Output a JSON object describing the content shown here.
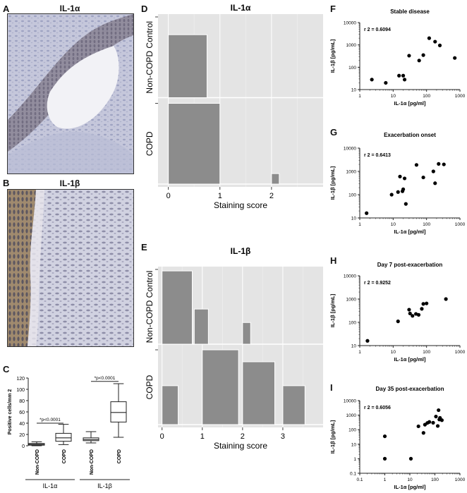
{
  "panels": {
    "A": {
      "letter": "A",
      "title": "IL-1α"
    },
    "B": {
      "letter": "B",
      "title": "IL-1β"
    },
    "C": {
      "letter": "C"
    },
    "D": {
      "letter": "D"
    },
    "E": {
      "letter": "E"
    },
    "F": {
      "letter": "F"
    },
    "G": {
      "letter": "G"
    },
    "H": {
      "letter": "H"
    },
    "I": {
      "letter": "I"
    }
  },
  "colors": {
    "hist_bg": "#e4e4e4",
    "hist_bar": "#8c8c8c",
    "box": "#222222",
    "dot": "#000000"
  },
  "chart_data": [
    {
      "id": "C",
      "type": "box",
      "ylabel": "Positive cells/mm 2",
      "ylim": [
        0,
        120
      ],
      "yticks": [
        0,
        20,
        40,
        60,
        80,
        100,
        120
      ],
      "groups": [
        "IL-1α",
        "IL-1β"
      ],
      "categories": [
        "Non-COPD",
        "COPD",
        "Non-COPD",
        "COPD"
      ],
      "boxes": [
        {
          "category": "Non-COPD",
          "group": "IL-1α",
          "min": 0,
          "q1": 1,
          "median": 2.5,
          "q3": 4,
          "max": 7
        },
        {
          "category": "COPD",
          "group": "IL-1α",
          "min": 2,
          "q1": 8,
          "median": 14,
          "q3": 22,
          "max": 38
        },
        {
          "category": "Non-COPD",
          "group": "IL-1β",
          "min": 5,
          "q1": 9,
          "median": 11,
          "q3": 14,
          "max": 25
        },
        {
          "category": "COPD",
          "group": "IL-1β",
          "min": 15,
          "q1": 42,
          "median": 59,
          "q3": 78,
          "max": 110
        }
      ],
      "annotations": [
        "*p<0.0001",
        "*p<0.0001"
      ]
    },
    {
      "id": "D",
      "type": "bar",
      "title": "IL-1α",
      "xlabel": "Staining score",
      "xlim": [
        -0.2,
        3
      ],
      "xticks": [
        0,
        1,
        2
      ],
      "rows": [
        {
          "name": "Non-COPD Control",
          "bars": [
            {
              "x0": 0,
              "x1": 0.75,
              "height": 0.78
            }
          ]
        },
        {
          "name": "COPD",
          "bars": [
            {
              "x0": 0,
              "x1": 1.0,
              "height": 1.0
            },
            {
              "x0": 2.0,
              "x1": 2.15,
              "height": 0.13
            }
          ]
        }
      ]
    },
    {
      "id": "E",
      "type": "bar",
      "title": "IL-1β",
      "xlabel": "Staining score",
      "xlim": [
        -0.1,
        4
      ],
      "xticks": [
        0,
        1,
        2,
        3
      ],
      "rows": [
        {
          "name": "Non-COPD Control",
          "bars": [
            {
              "x0": 0,
              "x1": 0.75,
              "height": 0.98
            },
            {
              "x0": 0.8,
              "x1": 1.15,
              "height": 0.47
            },
            {
              "x0": 2.0,
              "x1": 2.2,
              "height": 0.29
            }
          ]
        },
        {
          "name": "COPD",
          "bars": [
            {
              "x0": 0,
              "x1": 0.4,
              "height": 0.52
            },
            {
              "x0": 1.0,
              "x1": 1.9,
              "height": 1.0
            },
            {
              "x0": 2.0,
              "x1": 2.8,
              "height": 0.84
            },
            {
              "x0": 3.0,
              "x1": 3.55,
              "height": 0.52
            }
          ]
        }
      ]
    },
    {
      "id": "F",
      "type": "scatter",
      "title": "Stable disease",
      "r2": "r 2 = 0.6094",
      "xlabel": "IL-1α [pg/ml]",
      "ylabel": "IL-1β [pg/mL]",
      "xscale": "log",
      "yscale": "log",
      "xlim": [
        1,
        1000
      ],
      "ylim": [
        10,
        10000
      ],
      "xticks": [
        1,
        10,
        100,
        1000
      ],
      "yticks": [
        10,
        100,
        1000,
        10000
      ],
      "points": [
        [
          2.3,
          28
        ],
        [
          6,
          20
        ],
        [
          15,
          42
        ],
        [
          20,
          42
        ],
        [
          22,
          28
        ],
        [
          30,
          330
        ],
        [
          60,
          200
        ],
        [
          80,
          350
        ],
        [
          120,
          2000
        ],
        [
          180,
          1400
        ],
        [
          250,
          950
        ],
        [
          700,
          260
        ]
      ]
    },
    {
      "id": "G",
      "type": "scatter",
      "title": "Exacerbation onset",
      "r2": "r 2 = 0.6413",
      "xlabel": "IL-1α [pg/ml]",
      "ylabel": "IL-1β [pg/mL]",
      "xscale": "log",
      "yscale": "log",
      "xlim": [
        1,
        1000
      ],
      "ylim": [
        10,
        10000
      ],
      "xticks": [
        1,
        10,
        100,
        1000
      ],
      "yticks": [
        10,
        100,
        1000,
        10000
      ],
      "points": [
        [
          1.6,
          16
        ],
        [
          9,
          100
        ],
        [
          14,
          130
        ],
        [
          16,
          600
        ],
        [
          19,
          140
        ],
        [
          20,
          170
        ],
        [
          22,
          500
        ],
        [
          24,
          40
        ],
        [
          50,
          1900
        ],
        [
          80,
          550
        ],
        [
          160,
          1000
        ],
        [
          180,
          310
        ],
        [
          230,
          2100
        ],
        [
          330,
          2000
        ]
      ]
    },
    {
      "id": "H",
      "type": "scatter",
      "title": "Day 7 post-exacerbation",
      "r2": "r 2 = 0.9252",
      "xlabel": "IL-1α [pg/ml]",
      "ylabel": "IL-1β [pg/mL]",
      "xscale": "log",
      "yscale": "log",
      "xlim": [
        1,
        1000
      ],
      "ylim": [
        10,
        10000
      ],
      "xticks": [
        1,
        10,
        100,
        1000
      ],
      "yticks": [
        10,
        100,
        1000,
        10000
      ],
      "points": [
        [
          1.7,
          16
        ],
        [
          14,
          110
        ],
        [
          30,
          350
        ],
        [
          32,
          240
        ],
        [
          38,
          190
        ],
        [
          48,
          230
        ],
        [
          58,
          210
        ],
        [
          72,
          380
        ],
        [
          80,
          620
        ],
        [
          100,
          650
        ],
        [
          380,
          1000
        ]
      ]
    },
    {
      "id": "I",
      "type": "scatter",
      "title": "Day 35 post-exacerbation",
      "r2": "r 2 = 0.6056",
      "xlabel": "IL-1α [pg/ml]",
      "ylabel": "IL-1β [pg/mL]",
      "xscale": "log",
      "yscale": "log",
      "xlim": [
        0.1,
        1000
      ],
      "ylim": [
        0.1,
        10000
      ],
      "xticks": [
        0.1,
        1,
        10,
        100,
        1000
      ],
      "yticks": [
        0.1,
        1,
        10,
        100,
        1000,
        10000
      ],
      "points": [
        [
          1,
          1
        ],
        [
          1,
          35
        ],
        [
          11,
          1
        ],
        [
          22,
          170
        ],
        [
          35,
          60
        ],
        [
          40,
          220
        ],
        [
          50,
          290
        ],
        [
          60,
          340
        ],
        [
          85,
          300
        ],
        [
          110,
          800
        ],
        [
          130,
          180
        ],
        [
          140,
          2200
        ],
        [
          150,
          500
        ],
        [
          160,
          650
        ],
        [
          190,
          450
        ]
      ]
    }
  ]
}
